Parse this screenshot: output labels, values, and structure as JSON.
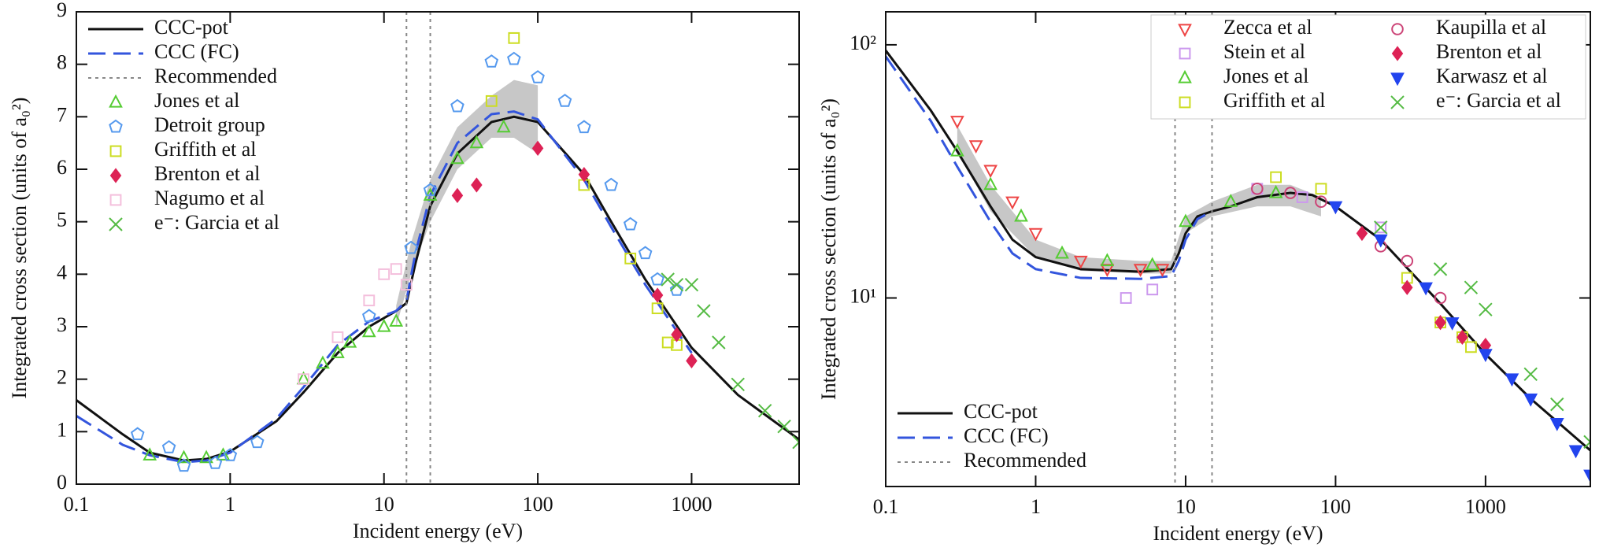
{
  "chart_data": [
    {
      "type": "line",
      "xlabel": "Incident energy (eV)",
      "ylabel": "Integrated cross section (units of a₀²)",
      "xlog": true,
      "xlim": [
        0.1,
        5000
      ],
      "xticks": [
        0.1,
        1,
        10,
        100,
        1000
      ],
      "ylim": [
        0,
        9
      ],
      "yticks": [
        0,
        1,
        2,
        3,
        4,
        5,
        6,
        7,
        8,
        9
      ],
      "legend": "upper left",
      "band": {
        "color": "#bdbdbd",
        "x": [
          12,
          15,
          20,
          30,
          50,
          70,
          100
        ],
        "lower": [
          3.0,
          4.0,
          5.0,
          6.0,
          6.6,
          6.6,
          6.3
        ],
        "upper": [
          3.4,
          4.6,
          5.8,
          6.8,
          7.4,
          7.7,
          7.6
        ]
      },
      "series": [
        {
          "name": "CCC-pot",
          "color": "#111111",
          "style": "solid",
          "x": [
            0.1,
            0.2,
            0.3,
            0.5,
            0.7,
            1,
            2,
            3,
            5,
            8,
            12,
            14,
            16,
            20,
            30,
            50,
            70,
            100,
            200,
            300,
            500,
            1000,
            2000,
            5000
          ],
          "values": [
            1.6,
            0.95,
            0.6,
            0.45,
            0.48,
            0.62,
            1.2,
            1.75,
            2.5,
            3.0,
            3.3,
            3.45,
            4.2,
            5.3,
            6.3,
            6.9,
            7.0,
            6.9,
            5.9,
            5.0,
            3.9,
            2.6,
            1.7,
            0.85
          ]
        },
        {
          "name": "CCC (FC)",
          "color": "#3355dd",
          "style": "dashed",
          "x": [
            0.1,
            0.2,
            0.3,
            0.5,
            0.7,
            1,
            2,
            3,
            5,
            8,
            12,
            14,
            16,
            20,
            30,
            50,
            70,
            100,
            200,
            300,
            500,
            1000
          ],
          "values": [
            1.3,
            0.75,
            0.55,
            0.42,
            0.45,
            0.6,
            1.25,
            1.85,
            2.65,
            3.1,
            3.3,
            3.5,
            4.4,
            5.5,
            6.5,
            7.05,
            7.1,
            6.95,
            5.8,
            4.9,
            3.8,
            2.5
          ]
        },
        {
          "name": "Recommended",
          "color": "#888888",
          "style": "dotted",
          "vlines": [
            14,
            20
          ]
        },
        {
          "name": "Jones et al",
          "color": "#55cc33",
          "marker": "triangle",
          "filled": false,
          "x": [
            0.3,
            0.5,
            0.7,
            0.9,
            3,
            4,
            5,
            6,
            8,
            10,
            12,
            20,
            30,
            40,
            60
          ],
          "values": [
            0.55,
            0.5,
            0.5,
            0.55,
            2.0,
            2.3,
            2.5,
            2.7,
            2.9,
            3.0,
            3.1,
            5.5,
            6.2,
            6.5,
            6.8
          ]
        },
        {
          "name": "Detroit group",
          "color": "#5599ee",
          "marker": "pentagon",
          "filled": false,
          "x": [
            0.25,
            0.4,
            0.5,
            0.8,
            1,
            1.5,
            8,
            15,
            20,
            30,
            50,
            70,
            100,
            150,
            200,
            300,
            400,
            500,
            600,
            800
          ],
          "values": [
            0.95,
            0.7,
            0.35,
            0.4,
            0.55,
            0.8,
            3.2,
            4.5,
            5.6,
            7.2,
            8.05,
            8.1,
            7.75,
            7.3,
            6.8,
            5.7,
            4.95,
            4.4,
            3.9,
            3.7
          ]
        },
        {
          "name": "Griffith et al",
          "color": "#ccdd22",
          "marker": "square",
          "filled": false,
          "x": [
            50,
            70,
            200,
            400,
            600,
            700,
            800
          ],
          "values": [
            7.3,
            8.5,
            5.7,
            4.3,
            3.35,
            2.7,
            2.65
          ]
        },
        {
          "name": "Brenton et al",
          "color": "#dd2255",
          "marker": "diamond",
          "filled": true,
          "x": [
            30,
            40,
            100,
            200,
            600,
            800,
            1000
          ],
          "values": [
            5.5,
            5.7,
            6.4,
            5.9,
            3.6,
            2.85,
            2.35
          ]
        },
        {
          "name": "Nagumo et al",
          "color": "#f4bfdc",
          "marker": "square",
          "filled": false,
          "x": [
            3,
            5,
            8,
            10,
            12,
            14
          ],
          "values": [
            2.0,
            2.8,
            3.5,
            4.0,
            4.1,
            3.8
          ]
        },
        {
          "name": "e⁻: Garcia et al",
          "color": "#55bb44",
          "marker": "x",
          "filled": false,
          "x": [
            700,
            800,
            1000,
            1200,
            1500,
            2000,
            3000,
            4000,
            5000
          ],
          "values": [
            3.9,
            3.8,
            3.8,
            3.3,
            2.7,
            1.9,
            1.4,
            1.1,
            0.8
          ]
        }
      ]
    },
    {
      "type": "line",
      "xlabel": "Incident energy (eV)",
      "ylabel": "Integrated cross section (units of a₀²)",
      "xlog": true,
      "xlim": [
        0.1,
        5000
      ],
      "xticks": [
        0.1,
        1,
        10,
        100,
        1000
      ],
      "ylog": true,
      "ylim": [
        1.8,
        135
      ],
      "yticks": [
        {
          "value": 10,
          "label": "10¹"
        },
        {
          "value": 100,
          "label": "10²"
        }
      ],
      "legend": "upper right",
      "legend_columns": 2,
      "line_legend": "lower left",
      "band": {
        "color": "#bdbdbd",
        "x": [
          0.3,
          0.5,
          1,
          2,
          5,
          8,
          10,
          15,
          30,
          50,
          80
        ],
        "lower": [
          38,
          22,
          14.5,
          12.8,
          12.5,
          12.5,
          18,
          21,
          23,
          23,
          21
        ],
        "upper": [
          48,
          28,
          17,
          14.5,
          14,
          14,
          21,
          24,
          28,
          28,
          25
        ]
      },
      "series": [
        {
          "name": "CCC-pot",
          "color": "#111111",
          "style": "solid",
          "x": [
            0.1,
            0.2,
            0.3,
            0.5,
            0.7,
            1,
            2,
            5,
            8,
            9,
            10,
            12,
            15,
            20,
            30,
            50,
            70,
            100,
            200,
            500,
            1000,
            2000,
            5000
          ],
          "values": [
            95,
            55,
            38,
            23,
            17,
            14.5,
            13,
            12.7,
            13,
            15,
            18,
            21,
            22,
            23,
            25,
            26,
            25.5,
            23,
            17,
            9.5,
            6,
            4,
            2.5
          ]
        },
        {
          "name": "CCC (FC)",
          "color": "#3355dd",
          "style": "dashed",
          "x": [
            0.1,
            0.2,
            0.3,
            0.5,
            0.7,
            1,
            2,
            5,
            8,
            9,
            10,
            12,
            15
          ],
          "values": [
            90,
            50,
            33,
            20,
            15,
            13,
            12,
            11.9,
            12.2,
            14,
            17,
            20.5,
            22
          ]
        },
        {
          "name": "Recommended",
          "color": "#888888",
          "style": "dotted",
          "vlines": [
            8.5,
            15
          ]
        },
        {
          "name": "Zecca et al",
          "color": "#ee4444",
          "marker": "triangle-down",
          "filled": false,
          "x": [
            0.3,
            0.4,
            0.5,
            0.7,
            1,
            2,
            3,
            5,
            7
          ],
          "values": [
            50,
            40,
            32,
            24,
            18,
            14,
            13,
            13,
            13
          ]
        },
        {
          "name": "Stein et al",
          "color": "#cc99ee",
          "marker": "square",
          "filled": false,
          "x": [
            4,
            6,
            30,
            60,
            200
          ],
          "values": [
            10,
            10.8,
            27,
            25,
            19
          ]
        },
        {
          "name": "Jones et al",
          "color": "#55cc33",
          "marker": "triangle",
          "filled": false,
          "x": [
            0.3,
            0.5,
            0.8,
            1.5,
            3,
            6,
            10,
            20,
            40
          ],
          "values": [
            38,
            28,
            21,
            15,
            14,
            13.5,
            20,
            24,
            26
          ]
        },
        {
          "name": "Griffith et al",
          "color": "#ccdd22",
          "marker": "square",
          "filled": false,
          "x": [
            40,
            80,
            300,
            500,
            700,
            800
          ],
          "values": [
            30,
            27,
            12,
            8,
            7,
            6.4
          ]
        },
        {
          "name": "Kaupilla et al",
          "color": "#cc4477",
          "marker": "circle",
          "filled": false,
          "x": [
            30,
            50,
            80,
            200,
            300,
            500
          ],
          "values": [
            27,
            26,
            24,
            16,
            14,
            10
          ]
        },
        {
          "name": "Brenton et al",
          "color": "#dd2255",
          "marker": "diamond",
          "filled": true,
          "x": [
            150,
            300,
            500,
            700,
            1000
          ],
          "values": [
            18,
            11,
            8,
            7,
            6.5
          ]
        },
        {
          "name": "Karwasz et al",
          "color": "#2244ee",
          "marker": "triangle-down",
          "filled": true,
          "x": [
            100,
            200,
            400,
            600,
            1000,
            1500,
            2000,
            3000,
            4000,
            5000
          ],
          "values": [
            23,
            17,
            11,
            8,
            6,
            4.8,
            4,
            3.2,
            2.5,
            2
          ]
        },
        {
          "name": "e⁻: Garcia et al",
          "color": "#55bb44",
          "marker": "x",
          "filled": false,
          "x": [
            200,
            500,
            800,
            1000,
            2000,
            3000,
            5000
          ],
          "values": [
            19,
            13,
            11,
            9,
            5,
            3.8,
            2.7
          ]
        }
      ]
    }
  ]
}
